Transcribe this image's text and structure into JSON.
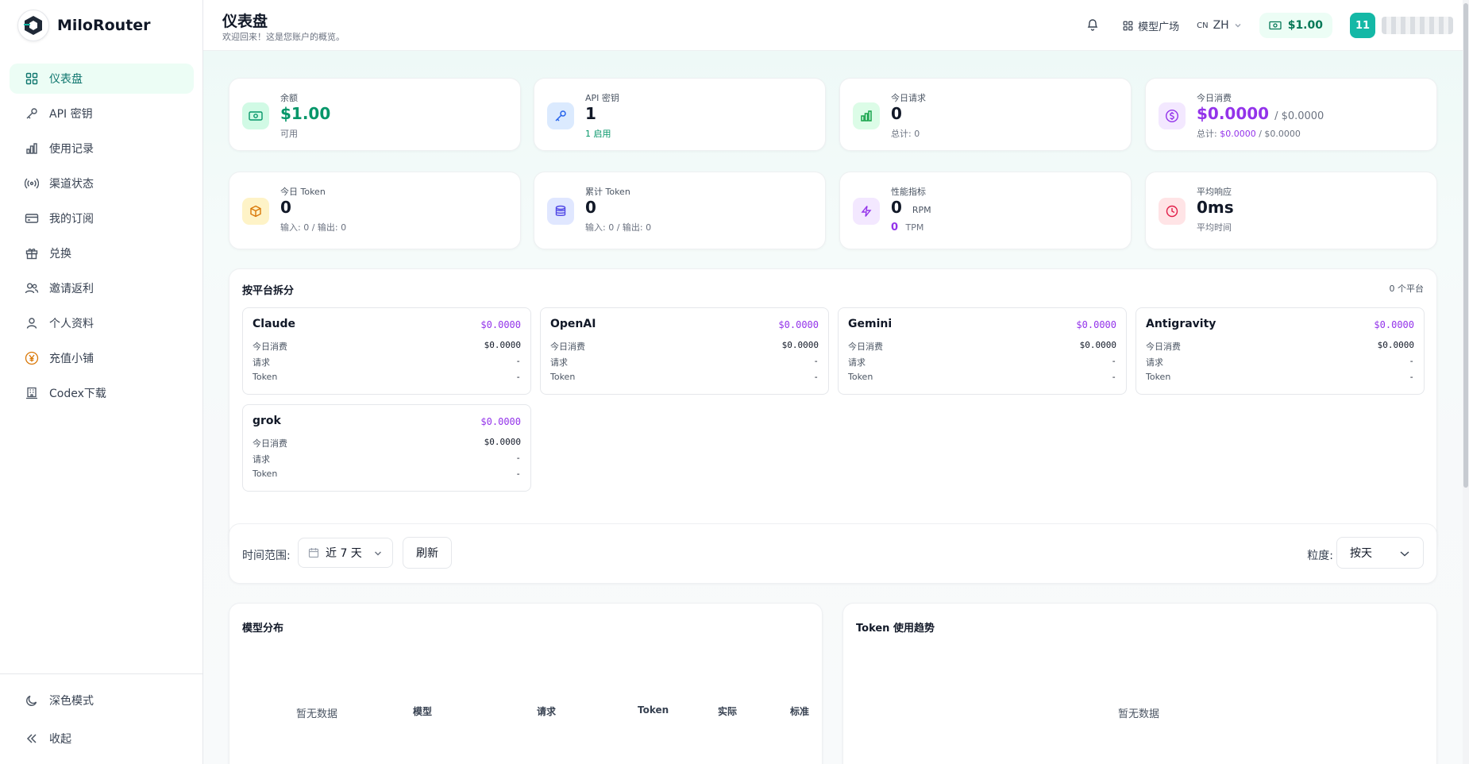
{
  "brand": {
    "name": "MiloRouter"
  },
  "sidebar": {
    "items": [
      {
        "label": "仪表盘",
        "icon": "grid-icon",
        "active": true
      },
      {
        "label": "API 密钥",
        "icon": "key-icon"
      },
      {
        "label": "使用记录",
        "icon": "bar-chart-icon"
      },
      {
        "label": "渠道状态",
        "icon": "signal-icon"
      },
      {
        "label": "我的订阅",
        "icon": "credit-card-icon"
      },
      {
        "label": "兑换",
        "icon": "gift-icon"
      },
      {
        "label": "邀请返利",
        "icon": "users-icon"
      },
      {
        "label": "个人资料",
        "icon": "user-icon"
      },
      {
        "label": "充值小铺",
        "icon": "yen-coin-icon"
      },
      {
        "label": "Codex下载",
        "icon": "building-icon"
      }
    ],
    "bottom": [
      {
        "label": "深色模式",
        "icon": "moon-icon"
      },
      {
        "label": "收起",
        "icon": "chevrons-left-icon"
      }
    ]
  },
  "header": {
    "title": "仪表盘",
    "subtitle": "欢迎回来！这是您账户的概览。",
    "model_plaza": "模型广场",
    "lang_flag": "CN",
    "lang": "ZH",
    "balance": "$1.00",
    "avatar_text": "11"
  },
  "stats": [
    {
      "label": "余额",
      "value": "$1.00",
      "sub": "可用"
    },
    {
      "label": "API 密钥",
      "value": "1",
      "sub": "1 启用"
    },
    {
      "label": "今日请求",
      "value": "0",
      "sub": "总计: 0"
    },
    {
      "label": "今日消费",
      "value": "$0.0000",
      "value_extra": "/ $0.0000",
      "sub_prefix": "总计: ",
      "sub_a": "$0.0000",
      "sub_b": " / $0.0000"
    },
    {
      "label": "今日 Token",
      "value": "0",
      "sub": "输入: 0 / 输出: 0"
    },
    {
      "label": "累计 Token",
      "value": "0",
      "sub": "输入: 0 / 输出: 0"
    },
    {
      "label": "性能指标",
      "value": "0",
      "unit": "RPM",
      "value2": "0",
      "unit2": "TPM"
    },
    {
      "label": "平均响应",
      "value": "0ms",
      "sub": "平均时间"
    }
  ],
  "platforms": {
    "title": "按平台拆分",
    "count": "0 个平台",
    "row_labels": [
      "今日消费",
      "请求",
      "Token"
    ],
    "items": [
      {
        "name": "Claude",
        "cost": "$0.0000",
        "today": "$0.0000",
        "requests": "-",
        "tokens": "-"
      },
      {
        "name": "OpenAI",
        "cost": "$0.0000",
        "today": "$0.0000",
        "requests": "-",
        "tokens": "-"
      },
      {
        "name": "Gemini",
        "cost": "$0.0000",
        "today": "$0.0000",
        "requests": "-",
        "tokens": "-"
      },
      {
        "name": "Antigravity",
        "cost": "$0.0000",
        "today": "$0.0000",
        "requests": "-",
        "tokens": "-"
      },
      {
        "name": "grok",
        "cost": "$0.0000",
        "today": "$0.0000",
        "requests": "-",
        "tokens": "-"
      }
    ]
  },
  "filters": {
    "range_label": "时间范围:",
    "range_value": "近 7 天",
    "refresh": "刷新",
    "granularity_label": "粒度:",
    "granularity_value": "按天"
  },
  "model_dist": {
    "title": "模型分布",
    "empty": "暂无数据",
    "columns": [
      "模型",
      "请求",
      "Token",
      "实际",
      "标准"
    ]
  },
  "token_trend": {
    "title": "Token 使用趋势",
    "empty": "暂无数据"
  }
}
